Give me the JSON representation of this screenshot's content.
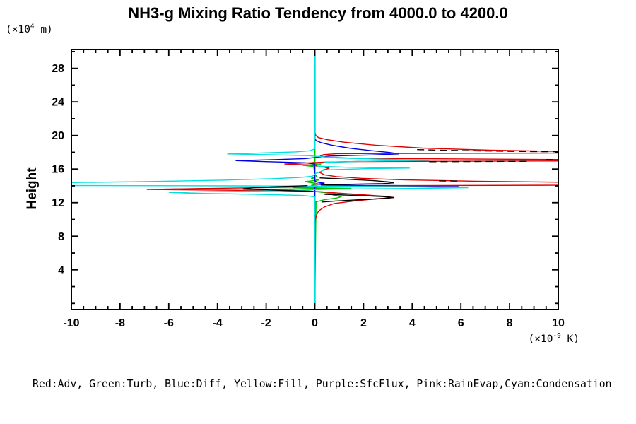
{
  "title": "NH3-g Mixing Ratio Tendency from 4000.0 to 4200.0",
  "legend": "Red:Adv, Green:Turb, Blue:Diff, Yellow:Fill, Purple:SfcFlux, Pink:RainEvap,Cyan:Condensation",
  "y_axis": {
    "title": "Height",
    "unit": {
      "pre": "(×10",
      "sup": "4",
      "post": " m)"
    },
    "min": 0,
    "max": 30,
    "minor_step": 2,
    "tick_values": [
      4,
      8,
      12,
      16,
      20,
      24,
      28
    ],
    "tick_labels": [
      "4",
      "8",
      "12",
      "16",
      "20",
      "24",
      "28"
    ]
  },
  "x_axis": {
    "unit": {
      "pre": "(×10",
      "sup": "-9",
      "post": " K)"
    },
    "min": -10,
    "max": 10,
    "minor_step": 0.5,
    "tick_values": [
      -10,
      -8,
      -6,
      -4,
      -2,
      0,
      2,
      4,
      6,
      8,
      10
    ],
    "tick_labels": [
      "-10",
      "-8",
      "-6",
      "-4",
      "-2",
      "0",
      "2",
      "4",
      "6",
      "8",
      "10"
    ]
  },
  "chart_data": {
    "type": "line",
    "orientation": "vertical-profile (x = tendency value ×10⁻⁹ K, y = height ×10⁴ m)",
    "xlim": [
      -10,
      10
    ],
    "ylim": [
      0,
      30
    ],
    "grid": false,
    "note": "curves off-scale beyond ±10 are clipped at plot edges; black dashed/solid overlay is unlabeled in the plot",
    "series": [
      {
        "name": "Fill",
        "color": "#ffff00",
        "points": [
          [
            0,
            0
          ],
          [
            30,
            0
          ]
        ]
      },
      {
        "name": "SfcFlux",
        "color": "#9900cc",
        "points": [
          [
            0,
            0
          ],
          [
            30,
            0
          ]
        ]
      },
      {
        "name": "RainEvap",
        "color": "#ff70c0",
        "points": [
          [
            0,
            0
          ],
          [
            13.85,
            0
          ],
          [
            13.95,
            0.15
          ],
          [
            14.02,
            -0.1
          ],
          [
            14.1,
            0.12
          ],
          [
            14.2,
            0
          ],
          [
            30,
            0
          ]
        ]
      },
      {
        "name": "Turb",
        "color": "#00c000",
        "points": [
          [
            0,
            0
          ],
          [
            12.1,
            0.05
          ],
          [
            12.35,
            0.4
          ],
          [
            12.55,
            0.9
          ],
          [
            12.72,
            1.1
          ],
          [
            12.88,
            0.75
          ],
          [
            13.0,
            1.0
          ],
          [
            13.15,
            0.5
          ],
          [
            13.3,
            0.1
          ],
          [
            13.45,
            -0.5
          ],
          [
            13.6,
            -1.8
          ],
          [
            13.7,
            1.5
          ],
          [
            13.8,
            -0.9
          ],
          [
            13.9,
            0.2
          ],
          [
            14.05,
            -0.15
          ],
          [
            14.25,
            0.12
          ],
          [
            14.5,
            -0.4
          ],
          [
            14.7,
            0.18
          ],
          [
            14.9,
            -0.15
          ],
          [
            15.1,
            0.08
          ],
          [
            15.4,
            0
          ],
          [
            16.3,
            -0.05
          ],
          [
            16.45,
            -0.5
          ],
          [
            16.58,
            0.25
          ],
          [
            16.72,
            -0.12
          ],
          [
            16.9,
            0
          ],
          [
            30,
            0
          ]
        ]
      },
      {
        "name": "Diff",
        "color": "#0000e0",
        "points": [
          [
            0,
            0
          ],
          [
            13.85,
            0
          ],
          [
            13.93,
            0.3
          ],
          [
            14.0,
            5.9
          ],
          [
            14.07,
            0.5
          ],
          [
            14.2,
            0.1
          ],
          [
            14.32,
            0.4
          ],
          [
            14.45,
            0.08
          ],
          [
            14.6,
            0
          ],
          [
            16.6,
            0
          ],
          [
            16.75,
            -0.4
          ],
          [
            16.88,
            -1.9
          ],
          [
            17.0,
            -3.25
          ],
          [
            17.12,
            -1.7
          ],
          [
            17.25,
            -0.4
          ],
          [
            17.4,
            0.1
          ],
          [
            17.55,
            0.6
          ],
          [
            17.68,
            2.3
          ],
          [
            17.8,
            3.45
          ],
          [
            17.97,
            3.1
          ],
          [
            18.2,
            2.3
          ],
          [
            18.5,
            1.4
          ],
          [
            18.85,
            0.7
          ],
          [
            19.15,
            0.25
          ],
          [
            19.4,
            0.05
          ],
          [
            19.7,
            0
          ],
          [
            30,
            0
          ]
        ]
      },
      {
        "name": "Adv",
        "color": "#e00000",
        "points": [
          [
            0,
            0
          ],
          [
            9.5,
            0
          ],
          [
            10,
            0.03
          ],
          [
            10.5,
            0.07
          ],
          [
            11,
            0.15
          ],
          [
            11.5,
            0.4
          ],
          [
            11.9,
            0.8
          ],
          [
            12.2,
            1.6
          ],
          [
            12.45,
            2.5
          ],
          [
            12.62,
            3.25
          ],
          [
            12.75,
            2.9
          ],
          [
            12.95,
            1.9
          ],
          [
            13.15,
            0.9
          ],
          [
            13.3,
            0.25
          ],
          [
            13.38,
            -0.6
          ],
          [
            13.48,
            -3.5
          ],
          [
            13.57,
            -6.9
          ],
          [
            13.68,
            -4.8
          ],
          [
            13.78,
            -2.2
          ],
          [
            13.88,
            -0.5
          ],
          [
            13.96,
            0.8
          ],
          [
            14.03,
            4
          ],
          [
            14.08,
            10.6
          ],
          [
            14.42,
            10.6
          ],
          [
            14.55,
            6.6
          ],
          [
            14.72,
            3.6
          ],
          [
            14.9,
            1.9
          ],
          [
            15.1,
            0.9
          ],
          [
            15.3,
            0.4
          ],
          [
            15.6,
            0.2
          ],
          [
            15.9,
            0.35
          ],
          [
            16.1,
            0.6
          ],
          [
            16.3,
            0.25
          ],
          [
            16.48,
            -0.2
          ],
          [
            16.6,
            -1.25
          ],
          [
            16.72,
            -0.45
          ],
          [
            16.82,
            0.4
          ],
          [
            16.9,
            1.8
          ],
          [
            16.97,
            10.6
          ],
          [
            17.13,
            10.6
          ],
          [
            17.28,
            1.6
          ],
          [
            17.42,
            0.45
          ],
          [
            17.58,
            0.25
          ],
          [
            17.72,
            0.35
          ],
          [
            17.84,
            0.9
          ],
          [
            17.91,
            10.6
          ],
          [
            18.07,
            10.6
          ],
          [
            18.25,
            7.2
          ],
          [
            18.5,
            4.4
          ],
          [
            18.85,
            2.5
          ],
          [
            19.2,
            1.2
          ],
          [
            19.5,
            0.5
          ],
          [
            19.75,
            0.15
          ],
          [
            20,
            0.04
          ],
          [
            20.4,
            0
          ],
          [
            30,
            0
          ]
        ]
      },
      {
        "name": "Condensation",
        "color": "#00e0e0",
        "points": [
          [
            0,
            0
          ],
          [
            12.7,
            0
          ],
          [
            12.85,
            -0.5
          ],
          [
            13.0,
            -2.5
          ],
          [
            13.13,
            -5.2
          ],
          [
            13.22,
            -6.0
          ],
          [
            13.32,
            -4
          ],
          [
            13.42,
            -1.6
          ],
          [
            13.52,
            -0.2
          ],
          [
            13.6,
            0.8
          ],
          [
            13.68,
            3.5
          ],
          [
            13.78,
            6.3
          ],
          [
            13.88,
            4.5
          ],
          [
            13.96,
            0.8
          ],
          [
            14.0,
            -3
          ],
          [
            14.04,
            -10.6
          ],
          [
            14.37,
            -10.6
          ],
          [
            14.5,
            -7
          ],
          [
            14.68,
            -3.8
          ],
          [
            14.85,
            -1.8
          ],
          [
            15.0,
            -0.6
          ],
          [
            15.15,
            -0.1
          ],
          [
            15.5,
            0.05
          ],
          [
            15.9,
            0.4
          ],
          [
            16.05,
            2.2
          ],
          [
            16.12,
            3.9
          ],
          [
            16.22,
            1.2
          ],
          [
            16.35,
            0.1
          ],
          [
            16.6,
            0.1
          ],
          [
            16.82,
            0.5
          ],
          [
            16.95,
            2.5
          ],
          [
            17.05,
            4.7
          ],
          [
            17.18,
            2.6
          ],
          [
            17.32,
            0.9
          ],
          [
            17.48,
            0.2
          ],
          [
            17.6,
            -0.3
          ],
          [
            17.7,
            -1.8
          ],
          [
            17.8,
            -3.6
          ],
          [
            17.92,
            -2.2
          ],
          [
            18.05,
            -0.8
          ],
          [
            18.18,
            -0.2
          ],
          [
            18.4,
            0
          ],
          [
            30,
            0
          ]
        ]
      }
    ],
    "black_overlay": {
      "name": "unlabeled-black",
      "color": "#000000",
      "segments": [
        {
          "dash": true,
          "points": [
            [
              18.32,
              4.2
            ],
            [
              18.2,
              6.0
            ],
            [
              18.1,
              8.5
            ],
            [
              18.06,
              10.2
            ]
          ]
        },
        {
          "dash": true,
          "points": [
            [
              16.88,
              4.7
            ],
            [
              16.93,
              8.8
            ]
          ]
        },
        {
          "dash": true,
          "points": [
            [
              17.12,
              9.5
            ],
            [
              17.1,
              10.2
            ]
          ]
        },
        {
          "dash": true,
          "points": [
            [
              14.6,
              5.1
            ],
            [
              14.56,
              6.0
            ]
          ]
        },
        {
          "dash": false,
          "points": [
            [
              14.95,
              0.2
            ],
            [
              14.8,
              1.3
            ],
            [
              14.62,
              2.4
            ],
            [
              14.45,
              3.1
            ],
            [
              14.36,
              3.25
            ],
            [
              14.27,
              2.8
            ],
            [
              14.17,
              1.1
            ],
            [
              14.1,
              0.25
            ]
          ]
        },
        {
          "dash": false,
          "points": [
            [
              14.02,
              -0.3
            ],
            [
              13.92,
              -1.4
            ],
            [
              13.78,
              -2.5
            ],
            [
              13.62,
              -2.96
            ],
            [
              13.5,
              -1.8
            ],
            [
              13.4,
              -0.7
            ],
            [
              13.33,
              -0.08
            ]
          ]
        },
        {
          "dash": false,
          "points": [
            [
              12.98,
              0.4
            ],
            [
              12.86,
              1.7
            ],
            [
              12.72,
              2.8
            ],
            [
              12.6,
              3.25
            ],
            [
              12.48,
              2.8
            ],
            [
              12.34,
              1.8
            ],
            [
              12.2,
              0.85
            ],
            [
              12.08,
              0.3
            ]
          ]
        }
      ]
    }
  }
}
